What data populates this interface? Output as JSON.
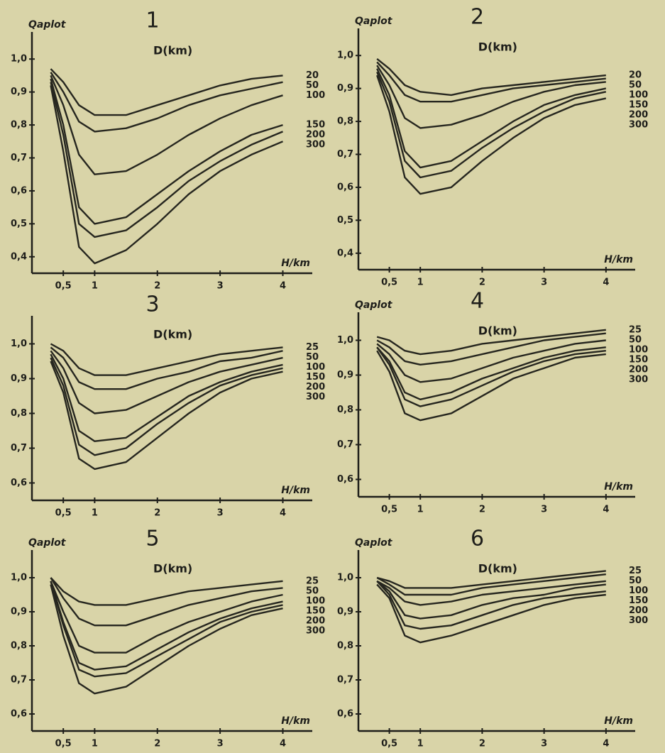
{
  "chart_data": [
    {
      "type": "line",
      "title": "1",
      "y_label": "Qaplot",
      "x_label": "H/km",
      "annotation": "D(km)",
      "color": "#26261f",
      "x": [
        0.3,
        0.5,
        0.75,
        1,
        1.5,
        2,
        2.5,
        3,
        3.5,
        4
      ],
      "xlim": [
        0,
        4.3
      ],
      "xticks": [
        {
          "value": 0.5,
          "label": "0,5"
        },
        1,
        2,
        3,
        4
      ],
      "ylim": [
        0.35,
        1.05
      ],
      "yticks": [
        {
          "value": 1.0,
          "label": "1,0"
        },
        {
          "value": 0.9,
          "label": "0,9"
        },
        {
          "value": 0.8,
          "label": "0,8"
        },
        {
          "value": 0.7,
          "label": "0,7"
        },
        {
          "value": 0.6,
          "label": "0,6"
        },
        {
          "value": 0.5,
          "label": "0,5"
        },
        {
          "value": 0.4,
          "label": "0,4"
        }
      ],
      "series": [
        {
          "name": "20",
          "values": [
            0.97,
            0.93,
            0.86,
            0.83,
            0.83,
            0.86,
            0.89,
            0.92,
            0.94,
            0.95
          ]
        },
        {
          "name": "50",
          "values": [
            0.96,
            0.9,
            0.81,
            0.78,
            0.79,
            0.82,
            0.86,
            0.89,
            0.91,
            0.93
          ]
        },
        {
          "name": "100",
          "values": [
            0.95,
            0.86,
            0.71,
            0.65,
            0.66,
            0.71,
            0.77,
            0.82,
            0.86,
            0.89
          ]
        },
        {
          "name": "150",
          "values": [
            0.94,
            0.8,
            0.55,
            0.5,
            0.52,
            0.59,
            0.66,
            0.72,
            0.77,
            0.8
          ]
        },
        {
          "name": "200",
          "values": [
            0.93,
            0.77,
            0.5,
            0.46,
            0.48,
            0.55,
            0.63,
            0.69,
            0.74,
            0.78
          ]
        },
        {
          "name": "300",
          "values": [
            0.92,
            0.72,
            0.43,
            0.38,
            0.42,
            0.5,
            0.59,
            0.66,
            0.71,
            0.75
          ]
        }
      ]
    },
    {
      "type": "line",
      "title": "2",
      "y_label": "Qaplot",
      "x_label": "H/km",
      "annotation": "D(km)",
      "color": "#26261f",
      "x": [
        0.3,
        0.5,
        0.75,
        1,
        1.5,
        2,
        2.5,
        3,
        3.5,
        4
      ],
      "xlim": [
        0,
        4.3
      ],
      "xticks": [
        {
          "value": 0.5,
          "label": "0,5"
        },
        1,
        2,
        3,
        4
      ],
      "ylim": [
        0.35,
        1.05
      ],
      "yticks": [
        {
          "value": 1.0,
          "label": "1,0"
        },
        {
          "value": 0.9,
          "label": "0,9"
        },
        {
          "value": 0.8,
          "label": "0,8"
        },
        {
          "value": 0.7,
          "label": "0,7"
        },
        {
          "value": 0.6,
          "label": "0,6"
        },
        {
          "value": 0.5,
          "label": "0,5"
        },
        {
          "value": 0.4,
          "label": "0,4"
        }
      ],
      "series": [
        {
          "name": "20",
          "values": [
            0.99,
            0.96,
            0.91,
            0.89,
            0.88,
            0.9,
            0.91,
            0.92,
            0.93,
            0.94
          ]
        },
        {
          "name": "50",
          "values": [
            0.98,
            0.94,
            0.88,
            0.86,
            0.86,
            0.88,
            0.9,
            0.91,
            0.92,
            0.93
          ]
        },
        {
          "name": "100",
          "values": [
            0.97,
            0.91,
            0.81,
            0.78,
            0.79,
            0.82,
            0.86,
            0.89,
            0.91,
            0.92
          ]
        },
        {
          "name": "150",
          "values": [
            0.96,
            0.88,
            0.71,
            0.66,
            0.68,
            0.74,
            0.8,
            0.85,
            0.88,
            0.9
          ]
        },
        {
          "name": "200",
          "values": [
            0.95,
            0.86,
            0.68,
            0.63,
            0.65,
            0.72,
            0.78,
            0.83,
            0.87,
            0.89
          ]
        },
        {
          "name": "300",
          "values": [
            0.94,
            0.83,
            0.63,
            0.58,
            0.6,
            0.68,
            0.75,
            0.81,
            0.85,
            0.87
          ]
        }
      ]
    },
    {
      "type": "line",
      "title": "3",
      "x_label": "H/km",
      "annotation": "D(km)",
      "color": "#26261f",
      "x": [
        0.3,
        0.5,
        0.75,
        1,
        1.5,
        2,
        2.5,
        3,
        3.5,
        4
      ],
      "xlim": [
        0,
        4.3
      ],
      "xticks": [
        {
          "value": 0.5,
          "label": "0,5"
        },
        1,
        2,
        3,
        4
      ],
      "ylim": [
        0.55,
        1.05
      ],
      "yticks": [
        {
          "value": 1.0,
          "label": "1,0"
        },
        {
          "value": 0.9,
          "label": "0,9"
        },
        {
          "value": 0.8,
          "label": "0,8"
        },
        {
          "value": 0.7,
          "label": "0,7"
        },
        {
          "value": 0.6,
          "label": "0,6"
        }
      ],
      "series": [
        {
          "name": "25",
          "values": [
            1.0,
            0.98,
            0.93,
            0.91,
            0.91,
            0.93,
            0.95,
            0.97,
            0.98,
            0.99
          ]
        },
        {
          "name": "50",
          "values": [
            0.99,
            0.96,
            0.89,
            0.87,
            0.87,
            0.9,
            0.92,
            0.95,
            0.96,
            0.98
          ]
        },
        {
          "name": "100",
          "values": [
            0.98,
            0.93,
            0.83,
            0.8,
            0.81,
            0.85,
            0.89,
            0.92,
            0.94,
            0.96
          ]
        },
        {
          "name": "150",
          "values": [
            0.97,
            0.9,
            0.75,
            0.72,
            0.73,
            0.79,
            0.85,
            0.89,
            0.92,
            0.94
          ]
        },
        {
          "name": "200",
          "values": [
            0.96,
            0.88,
            0.71,
            0.68,
            0.7,
            0.77,
            0.83,
            0.88,
            0.91,
            0.93
          ]
        },
        {
          "name": "300",
          "values": [
            0.95,
            0.86,
            0.67,
            0.64,
            0.66,
            0.73,
            0.8,
            0.86,
            0.9,
            0.92
          ]
        }
      ]
    },
    {
      "type": "line",
      "title": "4",
      "y_label": "Qaplot",
      "x_label": "H/km",
      "annotation": "D(km)",
      "color": "#26261f",
      "x": [
        0.3,
        0.5,
        0.75,
        1,
        1.5,
        2,
        2.5,
        3,
        3.5,
        4
      ],
      "xlim": [
        0,
        4.3
      ],
      "xticks": [
        {
          "value": 0.5,
          "label": "0,5"
        },
        1,
        2,
        3,
        4
      ],
      "ylim": [
        0.55,
        1.05
      ],
      "yticks": [
        {
          "value": 1.0,
          "label": "1,0"
        },
        {
          "value": 0.9,
          "label": "0,9"
        },
        {
          "value": 0.8,
          "label": "0,8"
        },
        {
          "value": 0.7,
          "label": "0,7"
        },
        {
          "value": 0.6,
          "label": "0,6"
        }
      ],
      "series": [
        {
          "name": "25",
          "values": [
            1.01,
            1.0,
            0.97,
            0.96,
            0.97,
            0.99,
            1.0,
            1.01,
            1.02,
            1.03
          ]
        },
        {
          "name": "50",
          "values": [
            1.0,
            0.98,
            0.94,
            0.93,
            0.94,
            0.96,
            0.98,
            1.0,
            1.01,
            1.02
          ]
        },
        {
          "name": "100",
          "values": [
            0.99,
            0.96,
            0.9,
            0.88,
            0.89,
            0.92,
            0.95,
            0.97,
            0.99,
            1.0
          ]
        },
        {
          "name": "150",
          "values": [
            0.98,
            0.94,
            0.85,
            0.83,
            0.85,
            0.89,
            0.92,
            0.95,
            0.97,
            0.98
          ]
        },
        {
          "name": "200",
          "values": [
            0.98,
            0.93,
            0.83,
            0.81,
            0.83,
            0.87,
            0.91,
            0.94,
            0.96,
            0.97
          ]
        },
        {
          "name": "300",
          "values": [
            0.97,
            0.91,
            0.79,
            0.77,
            0.79,
            0.84,
            0.89,
            0.92,
            0.95,
            0.96
          ]
        }
      ]
    },
    {
      "type": "line",
      "title": "5",
      "y_label": "Qaplot",
      "x_label": "H/km",
      "annotation": "D(km)",
      "color": "#26261f",
      "x": [
        0.3,
        0.5,
        0.75,
        1,
        1.5,
        2,
        2.5,
        3,
        3.5,
        4
      ],
      "xlim": [
        0,
        4.3
      ],
      "xticks": [
        {
          "value": 0.5,
          "label": "0,5"
        },
        1,
        2,
        3,
        4
      ],
      "ylim": [
        0.55,
        1.05
      ],
      "yticks": [
        {
          "value": 1.0,
          "label": "1,0"
        },
        {
          "value": 0.9,
          "label": "0,9"
        },
        {
          "value": 0.8,
          "label": "0,8"
        },
        {
          "value": 0.7,
          "label": "0,7"
        },
        {
          "value": 0.6,
          "label": "0,6"
        }
      ],
      "series": [
        {
          "name": "25",
          "values": [
            1.0,
            0.96,
            0.93,
            0.92,
            0.92,
            0.94,
            0.96,
            0.97,
            0.98,
            0.99
          ]
        },
        {
          "name": "50",
          "values": [
            1.0,
            0.94,
            0.88,
            0.86,
            0.86,
            0.89,
            0.92,
            0.94,
            0.96,
            0.97
          ]
        },
        {
          "name": "100",
          "values": [
            0.99,
            0.9,
            0.8,
            0.78,
            0.78,
            0.83,
            0.87,
            0.9,
            0.93,
            0.95
          ]
        },
        {
          "name": "150",
          "values": [
            0.99,
            0.87,
            0.75,
            0.73,
            0.74,
            0.79,
            0.84,
            0.88,
            0.91,
            0.93
          ]
        },
        {
          "name": "200",
          "values": [
            0.99,
            0.86,
            0.73,
            0.71,
            0.72,
            0.77,
            0.82,
            0.87,
            0.9,
            0.92
          ]
        },
        {
          "name": "300",
          "values": [
            0.98,
            0.83,
            0.69,
            0.66,
            0.68,
            0.74,
            0.8,
            0.85,
            0.89,
            0.91
          ]
        }
      ]
    },
    {
      "type": "line",
      "title": "6",
      "y_label": "Qaplot",
      "x_label": "H/km",
      "annotation": "D(km)",
      "color": "#26261f",
      "x": [
        0.3,
        0.5,
        0.75,
        1,
        1.5,
        2,
        2.5,
        3,
        3.5,
        4
      ],
      "xlim": [
        0,
        4.3
      ],
      "xticks": [
        {
          "value": 0.5,
          "label": "0,5"
        },
        1,
        2,
        3,
        4
      ],
      "ylim": [
        0.55,
        1.05
      ],
      "yticks": [
        {
          "value": 1.0,
          "label": "1,0"
        },
        {
          "value": 0.9,
          "label": "0,9"
        },
        {
          "value": 0.8,
          "label": "0,8"
        },
        {
          "value": 0.7,
          "label": "0,7"
        },
        {
          "value": 0.6,
          "label": "0,6"
        }
      ],
      "series": [
        {
          "name": "25",
          "values": [
            1.0,
            0.99,
            0.97,
            0.97,
            0.97,
            0.98,
            0.99,
            1.0,
            1.01,
            1.02
          ]
        },
        {
          "name": "50",
          "values": [
            1.0,
            0.98,
            0.95,
            0.95,
            0.95,
            0.97,
            0.98,
            0.99,
            1.0,
            1.01
          ]
        },
        {
          "name": "100",
          "values": [
            0.99,
            0.97,
            0.93,
            0.92,
            0.93,
            0.95,
            0.96,
            0.97,
            0.98,
            0.99
          ]
        },
        {
          "name": "150",
          "values": [
            0.99,
            0.96,
            0.89,
            0.88,
            0.89,
            0.92,
            0.94,
            0.95,
            0.97,
            0.98
          ]
        },
        {
          "name": "200",
          "values": [
            0.99,
            0.95,
            0.86,
            0.85,
            0.86,
            0.89,
            0.92,
            0.94,
            0.95,
            0.96
          ]
        },
        {
          "name": "300",
          "values": [
            0.98,
            0.94,
            0.83,
            0.81,
            0.83,
            0.86,
            0.89,
            0.92,
            0.94,
            0.95
          ]
        }
      ]
    }
  ]
}
